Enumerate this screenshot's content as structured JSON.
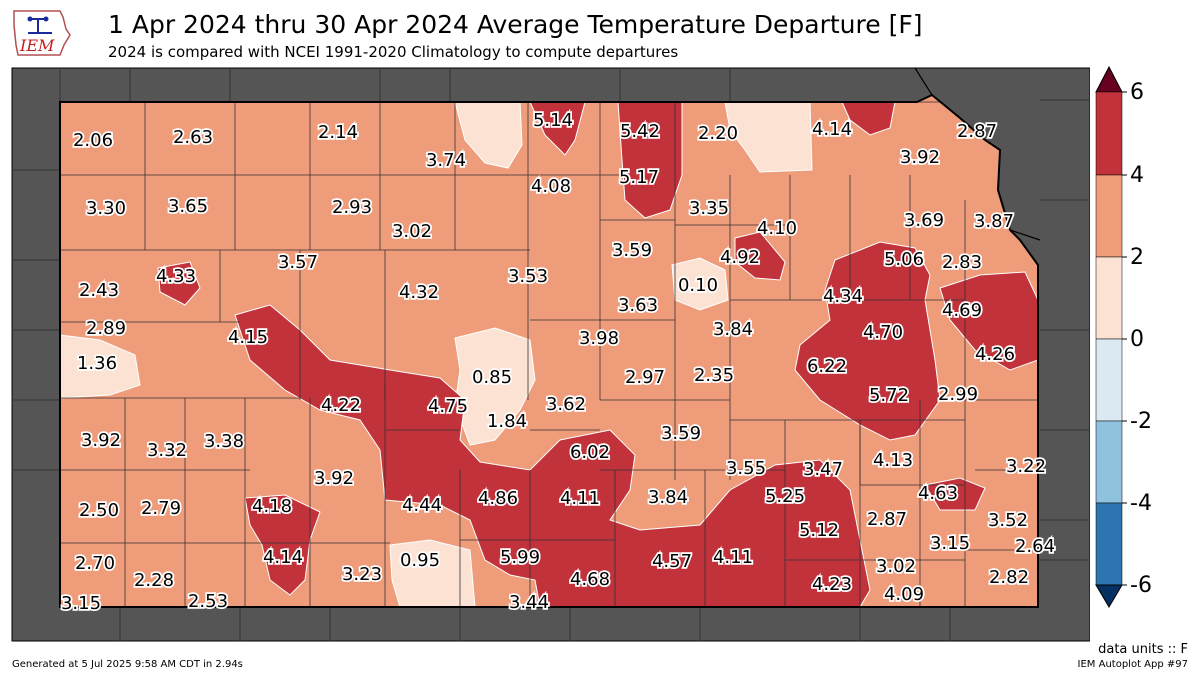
{
  "header": {
    "title": "1 Apr 2024 thru 30 Apr 2024 Average Temperature Departure [F]",
    "subtitle": "2024 is compared with NCEI 1991-2020 Climatology to compute departures",
    "logo_text": "IEM"
  },
  "colorbar": {
    "ticks": [
      "6",
      "4",
      "2",
      "0",
      "-2",
      "-4",
      "-6"
    ],
    "colors": [
      "#67001f",
      "#c1323b",
      "#ef9c7b",
      "#fce2d3",
      "#dbe9f3",
      "#8fc2dd",
      "#2d74b1",
      "#053061"
    ]
  },
  "map_colors": {
    "background_state": "#555555",
    "base_fill": "#ef9c7b",
    "warm_fill": "#c1323b",
    "light_fill": "#fce2d3"
  },
  "values": [
    {
      "id": "v1",
      "text": "2.06"
    },
    {
      "id": "v2",
      "text": "2.63"
    },
    {
      "id": "v3",
      "text": "2.14"
    },
    {
      "id": "v4",
      "text": "3.74"
    },
    {
      "id": "v5",
      "text": "5.14"
    },
    {
      "id": "v6",
      "text": "5.42"
    },
    {
      "id": "v7",
      "text": "2.20"
    },
    {
      "id": "v8",
      "text": "4.14"
    },
    {
      "id": "v9",
      "text": "2.87"
    },
    {
      "id": "v10",
      "text": "3.92"
    },
    {
      "id": "v11",
      "text": "4.08"
    },
    {
      "id": "v12",
      "text": "5.17"
    },
    {
      "id": "v13",
      "text": "3.30"
    },
    {
      "id": "v14",
      "text": "3.65"
    },
    {
      "id": "v15",
      "text": "2.93"
    },
    {
      "id": "v16",
      "text": "3.02"
    },
    {
      "id": "v17",
      "text": "3.35"
    },
    {
      "id": "v18",
      "text": "4.10"
    },
    {
      "id": "v19",
      "text": "3.69"
    },
    {
      "id": "v20",
      "text": "3.87"
    },
    {
      "id": "v21",
      "text": "3.59"
    },
    {
      "id": "v22",
      "text": "4.92"
    },
    {
      "id": "v23",
      "text": "3.57"
    },
    {
      "id": "v24",
      "text": "5.06"
    },
    {
      "id": "v25",
      "text": "2.83"
    },
    {
      "id": "v26",
      "text": "2.43"
    },
    {
      "id": "v27",
      "text": "4.33"
    },
    {
      "id": "v28",
      "text": "4.32"
    },
    {
      "id": "v29",
      "text": "3.53"
    },
    {
      "id": "v30",
      "text": "0.10"
    },
    {
      "id": "v31",
      "text": "4.34"
    },
    {
      "id": "v32",
      "text": "3.63"
    },
    {
      "id": "v33",
      "text": "4.69"
    },
    {
      "id": "v34",
      "text": "2.89"
    },
    {
      "id": "v35",
      "text": "4.15"
    },
    {
      "id": "v36",
      "text": "3.98"
    },
    {
      "id": "v37",
      "text": "3.84"
    },
    {
      "id": "v38",
      "text": "4.70"
    },
    {
      "id": "v39",
      "text": "4.26"
    },
    {
      "id": "v40",
      "text": "1.36"
    },
    {
      "id": "v41",
      "text": "0.85"
    },
    {
      "id": "v42",
      "text": "2.97"
    },
    {
      "id": "v43",
      "text": "2.35"
    },
    {
      "id": "v44",
      "text": "6.22"
    },
    {
      "id": "v45",
      "text": "5.72"
    },
    {
      "id": "v46",
      "text": "2.99"
    },
    {
      "id": "v47",
      "text": "4.22"
    },
    {
      "id": "v48",
      "text": "4.75"
    },
    {
      "id": "v49",
      "text": "3.62"
    },
    {
      "id": "v50",
      "text": "1.84"
    },
    {
      "id": "v51",
      "text": "3.92"
    },
    {
      "id": "v52",
      "text": "3.32"
    },
    {
      "id": "v53",
      "text": "3.38"
    },
    {
      "id": "v54",
      "text": "3.59"
    },
    {
      "id": "v55",
      "text": "6.02"
    },
    {
      "id": "v56",
      "text": "4.13"
    },
    {
      "id": "v57",
      "text": "3.22"
    },
    {
      "id": "v58",
      "text": "3.55"
    },
    {
      "id": "v59",
      "text": "3.47"
    },
    {
      "id": "v60",
      "text": "3.92"
    },
    {
      "id": "v61",
      "text": "4.63"
    },
    {
      "id": "v62",
      "text": "2.50"
    },
    {
      "id": "v63",
      "text": "2.79"
    },
    {
      "id": "v64",
      "text": "4.18"
    },
    {
      "id": "v65",
      "text": "4.44"
    },
    {
      "id": "v66",
      "text": "4.86"
    },
    {
      "id": "v67",
      "text": "4.11"
    },
    {
      "id": "v68",
      "text": "3.84"
    },
    {
      "id": "v69",
      "text": "5.25"
    },
    {
      "id": "v70",
      "text": "2.87"
    },
    {
      "id": "v71",
      "text": "3.52"
    },
    {
      "id": "v72",
      "text": "5.12"
    },
    {
      "id": "v73",
      "text": "3.15"
    },
    {
      "id": "v74",
      "text": "2.64"
    },
    {
      "id": "v75",
      "text": "2.70"
    },
    {
      "id": "v76",
      "text": "2.28"
    },
    {
      "id": "v77",
      "text": "4.14"
    },
    {
      "id": "v78",
      "text": "3.23"
    },
    {
      "id": "v79",
      "text": "0.95"
    },
    {
      "id": "v80",
      "text": "5.99"
    },
    {
      "id": "v81",
      "text": "4.57"
    },
    {
      "id": "v82",
      "text": "4.11"
    },
    {
      "id": "v83",
      "text": "3.02"
    },
    {
      "id": "v84",
      "text": "2.82"
    },
    {
      "id": "v85",
      "text": "4.68"
    },
    {
      "id": "v86",
      "text": "4.23"
    },
    {
      "id": "v87",
      "text": "4.09"
    },
    {
      "id": "v88",
      "text": "3.15"
    },
    {
      "id": "v89",
      "text": "2.53"
    },
    {
      "id": "v90",
      "text": "3.44"
    }
  ],
  "footer": {
    "units": "data units :: F",
    "generated": "Generated at 5 Jul 2025 9:58 AM CDT in 2.94s",
    "app": "IEM Autoplot App #97"
  }
}
